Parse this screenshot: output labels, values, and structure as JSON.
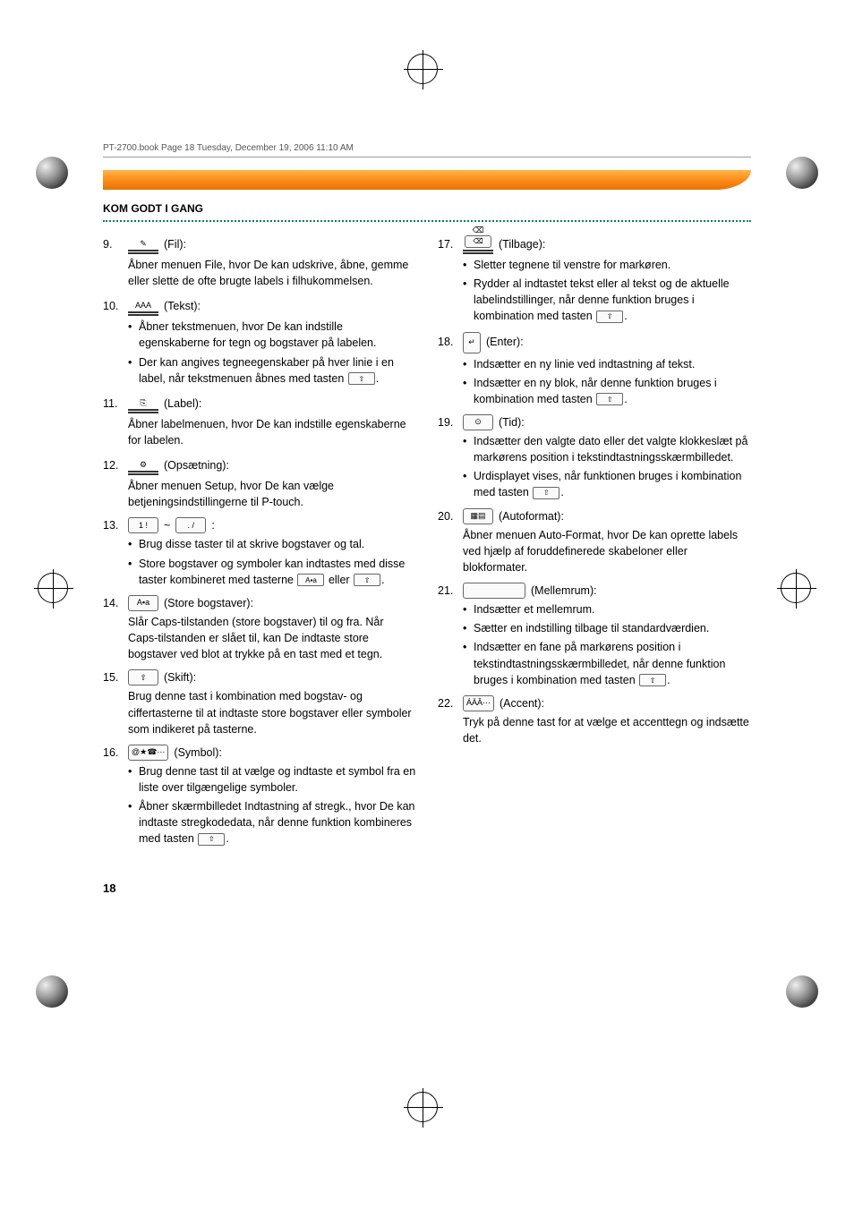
{
  "header_line": "PT-2700.book  Page 18  Tuesday, December 19, 2006  11:10 AM",
  "section_title": "KOM GODT I GANG",
  "page_number": "18",
  "colors": {
    "accent": "#008066",
    "orange_top": "#ffb54a",
    "orange_bottom": "#e67300"
  },
  "left_items": [
    {
      "num": "9.",
      "key_style": "underline-stacked",
      "key_symbol": "✎",
      "label": "(Fil):",
      "desc": "Åbner menuen File, hvor De kan udskrive, åbne, gemme eller slette de ofte brugte labels i filhukommelsen.",
      "bullets": []
    },
    {
      "num": "10.",
      "key_style": "underline-stacked",
      "key_symbol": "AAA",
      "label": "(Tekst):",
      "desc": "",
      "bullets": [
        "Åbner tekstmenuen, hvor De kan indstille egenskaberne for tegn og bogstaver på labelen.",
        "Der kan angives tegneegenskaber på hver linie i en label, når tekstmenuen åbnes med tasten [⇧]."
      ]
    },
    {
      "num": "11.",
      "key_style": "underline-stacked",
      "key_symbol": "⎘",
      "label": "(Label):",
      "desc": "Åbner labelmenuen, hvor De kan indstille egenskaberne for labelen.",
      "bullets": []
    },
    {
      "num": "12.",
      "key_style": "underline-stacked",
      "key_symbol": "⚙",
      "label": "(Opsætning):",
      "desc": "Åbner menuen Setup, hvor De kan vælge betjeningsindstillingerne til P-touch.",
      "bullets": []
    },
    {
      "num": "13.",
      "key_style": "range",
      "key_from": "1 !",
      "key_to": ". /",
      "label": ":",
      "desc": "",
      "bullets": [
        "Brug disse taster til at skrive bogstaver og tal.",
        "Store bogstaver og symboler kan indtastes med disse taster kombineret med tasterne [A▪a] eller [⇧]."
      ]
    },
    {
      "num": "14.",
      "key_style": "box",
      "key_symbol": "A▪a",
      "label": "(Store bogstaver):",
      "desc": "Slår Caps-tilstanden (store bogstaver) til og fra. Når Caps-tilstanden er slået til, kan De indtaste store bogstaver ved blot at trykke på en tast med et tegn.",
      "bullets": []
    },
    {
      "num": "15.",
      "key_style": "box",
      "key_symbol": "⇧",
      "label": "(Skift):",
      "desc": "Brug denne tast i kombination med bogstav- og ciffertasterne til at indtaste store bogstaver eller symboler som indikeret på tasterne.",
      "bullets": []
    },
    {
      "num": "16.",
      "key_style": "box",
      "key_symbol": "@★☎⋯",
      "label": "(Symbol):",
      "desc": "",
      "bullets": [
        "Brug denne tast til at vælge og indtaste et symbol fra en liste over tilgængelige symboler.",
        "Åbner skærmbilledet Indtastning af stregk., hvor De kan indtaste stregkodedata, når denne funktion kombineres med tasten [⇧]."
      ]
    }
  ],
  "right_items": [
    {
      "num": "17.",
      "key_style": "underline-stacked-box",
      "key_symbol": "⌫",
      "label": "(Tilbage):",
      "desc": "",
      "bullets": [
        "Sletter tegnene til venstre for markøren.",
        "Rydder al indtastet tekst eller al tekst og de aktuelle labelindstillinger, når denne funktion bruges i kombination med tasten [⇧]."
      ]
    },
    {
      "num": "18.",
      "key_style": "tall-box",
      "key_symbol": "↵",
      "label": "(Enter):",
      "desc": "",
      "bullets": [
        "Indsætter en ny linie ved indtastning af tekst.",
        "Indsætter en ny blok, når denne funktion bruges i kombination med tasten [⇧]."
      ]
    },
    {
      "num": "19.",
      "key_style": "box",
      "key_symbol": "⊙",
      "label": "(Tid):",
      "desc": "",
      "bullets": [
        "Indsætter den valgte dato eller det valgte klokkeslæt på markørens position i tekstindtastningsskærmbilledet.",
        "Urdisplayet vises, når funktionen bruges i kombination med tasten [⇧]."
      ]
    },
    {
      "num": "20.",
      "key_style": "box",
      "key_symbol": "▦▤",
      "label": "(Autoformat):",
      "desc": "Åbner menuen Auto-Format, hvor De kan oprette labels ved hjælp af foruddefinerede skabeloner eller blokformater.",
      "bullets": []
    },
    {
      "num": "21.",
      "key_style": "wide-box",
      "key_symbol": "",
      "label": "(Mellemrum):",
      "desc": "",
      "bullets": [
        "Indsætter et mellemrum.",
        "Sætter en indstilling tilbage til standardværdien.",
        "Indsætter en fane på markørens position i tekstindtastningsskærmbilledet, når denne funktion bruges i kombination med tasten [⇧]."
      ]
    },
    {
      "num": "22.",
      "key_style": "box",
      "key_symbol": "ÁÄÂ⋯",
      "label": "(Accent):",
      "desc": "Tryk på denne tast for at vælge et accenttegn og indsætte det.",
      "bullets": []
    }
  ]
}
